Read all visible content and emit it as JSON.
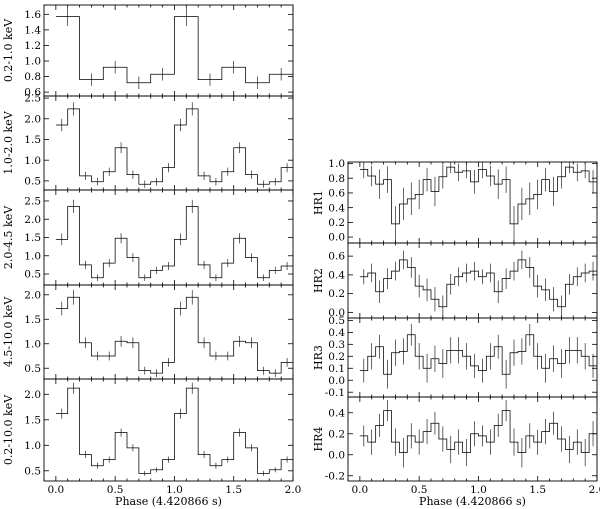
{
  "chart_data": [
    {
      "type": "line",
      "group": "left",
      "ylabel": "0.2-1.0 keV",
      "ylim": [
        0.55,
        1.72
      ],
      "yticks": [
        0.6,
        0.8,
        1.0,
        1.2,
        1.4,
        1.6
      ],
      "yticklabels": [
        "0.6",
        "0.8",
        "1.0",
        "1.2",
        "1.4",
        "1.6"
      ],
      "xlim": [
        -0.1,
        2.0
      ],
      "bin_width": 0.2,
      "x": [
        0.0,
        0.2,
        0.4,
        0.6,
        0.8,
        1.0,
        1.2,
        1.4,
        1.6,
        1.8
      ],
      "values": [
        1.57,
        0.76,
        0.92,
        0.72,
        0.83,
        1.57,
        0.76,
        0.92,
        0.72,
        0.83
      ],
      "errors": [
        0.12,
        0.08,
        0.08,
        0.08,
        0.08,
        0.12,
        0.08,
        0.08,
        0.08,
        0.08
      ]
    },
    {
      "type": "line",
      "group": "left",
      "ylabel": "1.0-2.0 keV",
      "ylim": [
        0.28,
        2.55
      ],
      "yticks": [
        0.5,
        1.0,
        1.5,
        2.0,
        2.5
      ],
      "yticklabels": [
        "0.5",
        "1.0",
        "1.5",
        "2.0",
        "2.5"
      ],
      "xlim": [
        -0.1,
        2.0
      ],
      "bin_width": 0.1,
      "x": [
        0.0,
        0.1,
        0.2,
        0.3,
        0.4,
        0.5,
        0.6,
        0.7,
        0.8,
        0.9,
        1.0,
        1.1,
        1.2,
        1.3,
        1.4,
        1.5,
        1.6,
        1.7,
        1.8,
        1.9
      ],
      "values": [
        1.85,
        2.24,
        0.62,
        0.48,
        0.72,
        1.3,
        0.65,
        0.42,
        0.48,
        0.82,
        1.85,
        2.24,
        0.62,
        0.48,
        0.72,
        1.3,
        0.65,
        0.42,
        0.48,
        0.82
      ],
      "errors": [
        0.15,
        0.16,
        0.1,
        0.09,
        0.1,
        0.13,
        0.1,
        0.09,
        0.09,
        0.11,
        0.15,
        0.16,
        0.1,
        0.09,
        0.1,
        0.13,
        0.1,
        0.09,
        0.09,
        0.11
      ]
    },
    {
      "type": "line",
      "group": "left",
      "ylabel": "2.0-4.5 keV",
      "ylim": [
        0.2,
        2.8
      ],
      "yticks": [
        0.5,
        1.0,
        1.5,
        2.0,
        2.5
      ],
      "yticklabels": [
        "0.5",
        "1.0",
        "1.5",
        "2.0",
        "2.5"
      ],
      "xlim": [
        -0.1,
        2.0
      ],
      "bin_width": 0.1,
      "x": [
        0.0,
        0.1,
        0.2,
        0.3,
        0.4,
        0.5,
        0.6,
        0.7,
        0.8,
        0.9,
        1.0,
        1.1,
        1.2,
        1.3,
        1.4,
        1.5,
        1.6,
        1.7,
        1.8,
        1.9
      ],
      "values": [
        1.45,
        2.35,
        0.75,
        0.4,
        0.8,
        1.48,
        0.95,
        0.4,
        0.6,
        0.72,
        1.45,
        2.35,
        0.75,
        0.4,
        0.8,
        1.48,
        0.95,
        0.4,
        0.6,
        0.72
      ],
      "errors": [
        0.16,
        0.18,
        0.11,
        0.09,
        0.11,
        0.14,
        0.12,
        0.09,
        0.1,
        0.11,
        0.16,
        0.18,
        0.11,
        0.09,
        0.11,
        0.14,
        0.12,
        0.09,
        0.1,
        0.11
      ]
    },
    {
      "type": "line",
      "group": "left",
      "ylabel": "4.5-10.0 keV",
      "ylim": [
        0.28,
        2.2
      ],
      "yticks": [
        0.5,
        1.0,
        1.5,
        2.0
      ],
      "yticklabels": [
        "0.5",
        "1.0",
        "1.5",
        "2.0"
      ],
      "xlim": [
        -0.1,
        2.0
      ],
      "bin_width": 0.1,
      "x": [
        0.0,
        0.1,
        0.2,
        0.3,
        0.4,
        0.5,
        0.6,
        0.7,
        0.8,
        0.9,
        1.0,
        1.1,
        1.2,
        1.3,
        1.4,
        1.5,
        1.6,
        1.7,
        1.8,
        1.9
      ],
      "values": [
        1.72,
        1.95,
        1.02,
        0.75,
        0.75,
        1.05,
        1.02,
        0.45,
        0.4,
        0.62,
        1.72,
        1.95,
        1.02,
        0.75,
        0.75,
        1.05,
        1.02,
        0.45,
        0.4,
        0.62
      ],
      "errors": [
        0.14,
        0.15,
        0.11,
        0.09,
        0.09,
        0.11,
        0.11,
        0.08,
        0.08,
        0.09,
        0.14,
        0.15,
        0.11,
        0.09,
        0.09,
        0.11,
        0.11,
        0.08,
        0.08,
        0.09
      ]
    },
    {
      "type": "line",
      "group": "left",
      "ylabel": "0.2-10.0 keV",
      "ylim": [
        0.3,
        2.3
      ],
      "yticks": [
        0.5,
        1.0,
        1.5,
        2.0
      ],
      "yticklabels": [
        "0.5",
        "1.0",
        "1.5",
        "2.0"
      ],
      "xlim": [
        -0.1,
        2.0
      ],
      "xticks": [
        0.0,
        0.5,
        1.0,
        1.5,
        2.0
      ],
      "xticklabels": [
        "0.0",
        "0.5",
        "1.0",
        "1.5",
        "2.0"
      ],
      "xlabel": "Phase (4.420866 s)",
      "bin_width": 0.1,
      "x": [
        0.0,
        0.1,
        0.2,
        0.3,
        0.4,
        0.5,
        0.6,
        0.7,
        0.8,
        0.9,
        1.0,
        1.1,
        1.2,
        1.3,
        1.4,
        1.5,
        1.6,
        1.7,
        1.8,
        1.9
      ],
      "values": [
        1.62,
        2.12,
        0.82,
        0.6,
        0.72,
        1.25,
        0.95,
        0.45,
        0.52,
        0.72,
        1.62,
        2.12,
        0.82,
        0.6,
        0.72,
        1.25,
        0.95,
        0.45,
        0.52,
        0.72
      ],
      "errors": [
        0.1,
        0.11,
        0.07,
        0.06,
        0.06,
        0.08,
        0.07,
        0.05,
        0.05,
        0.06,
        0.1,
        0.11,
        0.07,
        0.06,
        0.06,
        0.08,
        0.07,
        0.05,
        0.05,
        0.06
      ]
    },
    {
      "type": "line",
      "group": "right",
      "ylabel": "HR1",
      "ylim": [
        -0.08,
        1.02
      ],
      "yticks": [
        0.0,
        0.2,
        0.4,
        0.6,
        0.8,
        1.0
      ],
      "yticklabels": [
        "0.0",
        "0.2",
        "0.4",
        "0.6",
        "0.8",
        "1.0"
      ],
      "xlim": [
        -0.1,
        2.0
      ],
      "bin_width": 0.066667,
      "x": [
        0.0,
        0.0667,
        0.1333,
        0.2,
        0.2667,
        0.3333,
        0.4,
        0.4667,
        0.5333,
        0.6,
        0.6667,
        0.7333,
        0.8,
        0.8667,
        0.9333,
        1.0,
        1.0667,
        1.1333,
        1.2,
        1.2667,
        1.3333,
        1.4,
        1.4667,
        1.5333,
        1.6,
        1.6667,
        1.7333,
        1.8,
        1.8667,
        1.9333
      ],
      "values": [
        0.92,
        0.83,
        0.72,
        0.78,
        0.18,
        0.45,
        0.52,
        0.58,
        0.78,
        0.62,
        0.82,
        0.95,
        0.88,
        0.9,
        0.75,
        0.92,
        0.83,
        0.72,
        0.78,
        0.18,
        0.45,
        0.52,
        0.58,
        0.78,
        0.62,
        0.82,
        0.95,
        0.88,
        0.9,
        0.75
      ],
      "errors": [
        0.12,
        0.14,
        0.2,
        0.18,
        0.24,
        0.22,
        0.22,
        0.2,
        0.16,
        0.2,
        0.16,
        0.08,
        0.12,
        0.1,
        0.16,
        0.12,
        0.14,
        0.2,
        0.18,
        0.24,
        0.22,
        0.22,
        0.2,
        0.16,
        0.2,
        0.16,
        0.08,
        0.12,
        0.1,
        0.16
      ]
    },
    {
      "type": "line",
      "group": "right",
      "ylabel": "HR2",
      "ylim": [
        -0.06,
        0.74
      ],
      "yticks": [
        0.0,
        0.2,
        0.4,
        0.6
      ],
      "yticklabels": [
        "0.0",
        "0.2",
        "0.4",
        "0.6"
      ],
      "xlim": [
        -0.1,
        2.0
      ],
      "bin_width": 0.066667,
      "x": [
        0.0,
        0.0667,
        0.1333,
        0.2,
        0.2667,
        0.3333,
        0.4,
        0.4667,
        0.5333,
        0.6,
        0.6667,
        0.7333,
        0.8,
        0.8667,
        0.9333,
        1.0,
        1.0667,
        1.1333,
        1.2,
        1.2667,
        1.3333,
        1.4,
        1.4667,
        1.5333,
        1.6,
        1.6667,
        1.7333,
        1.8,
        1.8667,
        1.9333
      ],
      "values": [
        0.38,
        0.42,
        0.22,
        0.36,
        0.44,
        0.56,
        0.48,
        0.28,
        0.24,
        0.14,
        0.06,
        0.3,
        0.38,
        0.42,
        0.44,
        0.38,
        0.42,
        0.22,
        0.36,
        0.44,
        0.56,
        0.48,
        0.28,
        0.24,
        0.14,
        0.06,
        0.3,
        0.38,
        0.42,
        0.44
      ],
      "errors": [
        0.08,
        0.1,
        0.12,
        0.11,
        0.1,
        0.1,
        0.11,
        0.12,
        0.12,
        0.13,
        0.12,
        0.11,
        0.1,
        0.1,
        0.1,
        0.08,
        0.1,
        0.12,
        0.11,
        0.1,
        0.1,
        0.11,
        0.12,
        0.12,
        0.13,
        0.12,
        0.11,
        0.1,
        0.1,
        0.1
      ]
    },
    {
      "type": "line",
      "group": "right",
      "ylabel": "HR3",
      "ylim": [
        -0.14,
        0.52
      ],
      "yticks": [
        -0.1,
        0.0,
        0.1,
        0.2,
        0.3,
        0.4,
        0.5
      ],
      "yticklabels": [
        "-0.1",
        "0.0",
        "0.1",
        "0.2",
        "0.3",
        "0.4",
        "0.5"
      ],
      "xlim": [
        -0.1,
        2.0
      ],
      "bin_width": 0.066667,
      "x": [
        0.0,
        0.0667,
        0.1333,
        0.2,
        0.2667,
        0.3333,
        0.4,
        0.4667,
        0.5333,
        0.6,
        0.6667,
        0.7333,
        0.8,
        0.8667,
        0.9333,
        1.0,
        1.0667,
        1.1333,
        1.2,
        1.2667,
        1.3333,
        1.4,
        1.4667,
        1.5333,
        1.6,
        1.6667,
        1.7333,
        1.8,
        1.8667,
        1.9333
      ],
      "values": [
        0.08,
        0.2,
        0.28,
        0.05,
        0.23,
        0.24,
        0.38,
        0.2,
        0.1,
        0.18,
        0.14,
        0.25,
        0.25,
        0.2,
        0.12,
        0.08,
        0.2,
        0.28,
        0.05,
        0.23,
        0.24,
        0.38,
        0.2,
        0.1,
        0.18,
        0.14,
        0.25,
        0.25,
        0.2,
        0.12
      ],
      "errors": [
        0.1,
        0.11,
        0.1,
        0.12,
        0.11,
        0.11,
        0.09,
        0.11,
        0.12,
        0.11,
        0.12,
        0.11,
        0.11,
        0.11,
        0.1,
        0.1,
        0.11,
        0.1,
        0.12,
        0.11,
        0.11,
        0.09,
        0.11,
        0.12,
        0.11,
        0.12,
        0.11,
        0.11,
        0.11,
        0.1
      ]
    },
    {
      "type": "line",
      "group": "right",
      "ylabel": "HR4",
      "ylim": [
        -0.25,
        0.55
      ],
      "yticks": [
        -0.2,
        0.0,
        0.2,
        0.4
      ],
      "yticklabels": [
        "-0.2",
        "0.0",
        "0.2",
        "0.4"
      ],
      "xlim": [
        -0.1,
        2.0
      ],
      "xticks": [
        0.0,
        0.5,
        1.0,
        1.5,
        2.0
      ],
      "xticklabels": [
        "0.0",
        "0.5",
        "1.0",
        "1.5",
        "2.0"
      ],
      "xlabel": "Phase (4.420866 s)",
      "bin_width": 0.066667,
      "x": [
        0.0,
        0.0667,
        0.1333,
        0.2,
        0.2667,
        0.3333,
        0.4,
        0.4667,
        0.5333,
        0.6,
        0.6667,
        0.7333,
        0.8,
        0.8667,
        0.9333,
        1.0,
        1.0667,
        1.1333,
        1.2,
        1.2667,
        1.3333,
        1.4,
        1.4667,
        1.5333,
        1.6,
        1.6667,
        1.7333,
        1.8,
        1.8667,
        1.9333
      ],
      "values": [
        0.18,
        0.12,
        0.28,
        0.42,
        0.12,
        0.02,
        0.18,
        0.12,
        0.22,
        0.3,
        0.15,
        0.05,
        0.12,
        0.02,
        0.2,
        0.18,
        0.12,
        0.28,
        0.42,
        0.12,
        0.02,
        0.18,
        0.12,
        0.22,
        0.3,
        0.15,
        0.05,
        0.12,
        0.02,
        0.2
      ],
      "errors": [
        0.1,
        0.12,
        0.11,
        0.1,
        0.13,
        0.14,
        0.12,
        0.12,
        0.12,
        0.11,
        0.12,
        0.13,
        0.12,
        0.13,
        0.12,
        0.1,
        0.12,
        0.11,
        0.1,
        0.13,
        0.14,
        0.12,
        0.12,
        0.12,
        0.11,
        0.12,
        0.13,
        0.12,
        0.13,
        0.12
      ]
    }
  ]
}
